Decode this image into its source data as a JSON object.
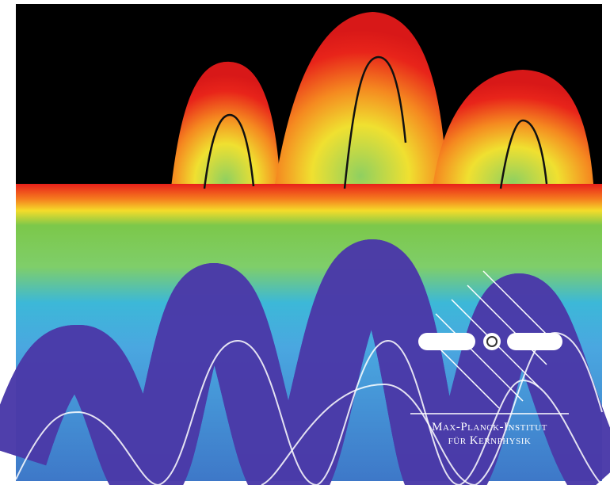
{
  "logo": {
    "line1": "Max-Planck-Institut",
    "line2": "für Kernphysik"
  }
}
